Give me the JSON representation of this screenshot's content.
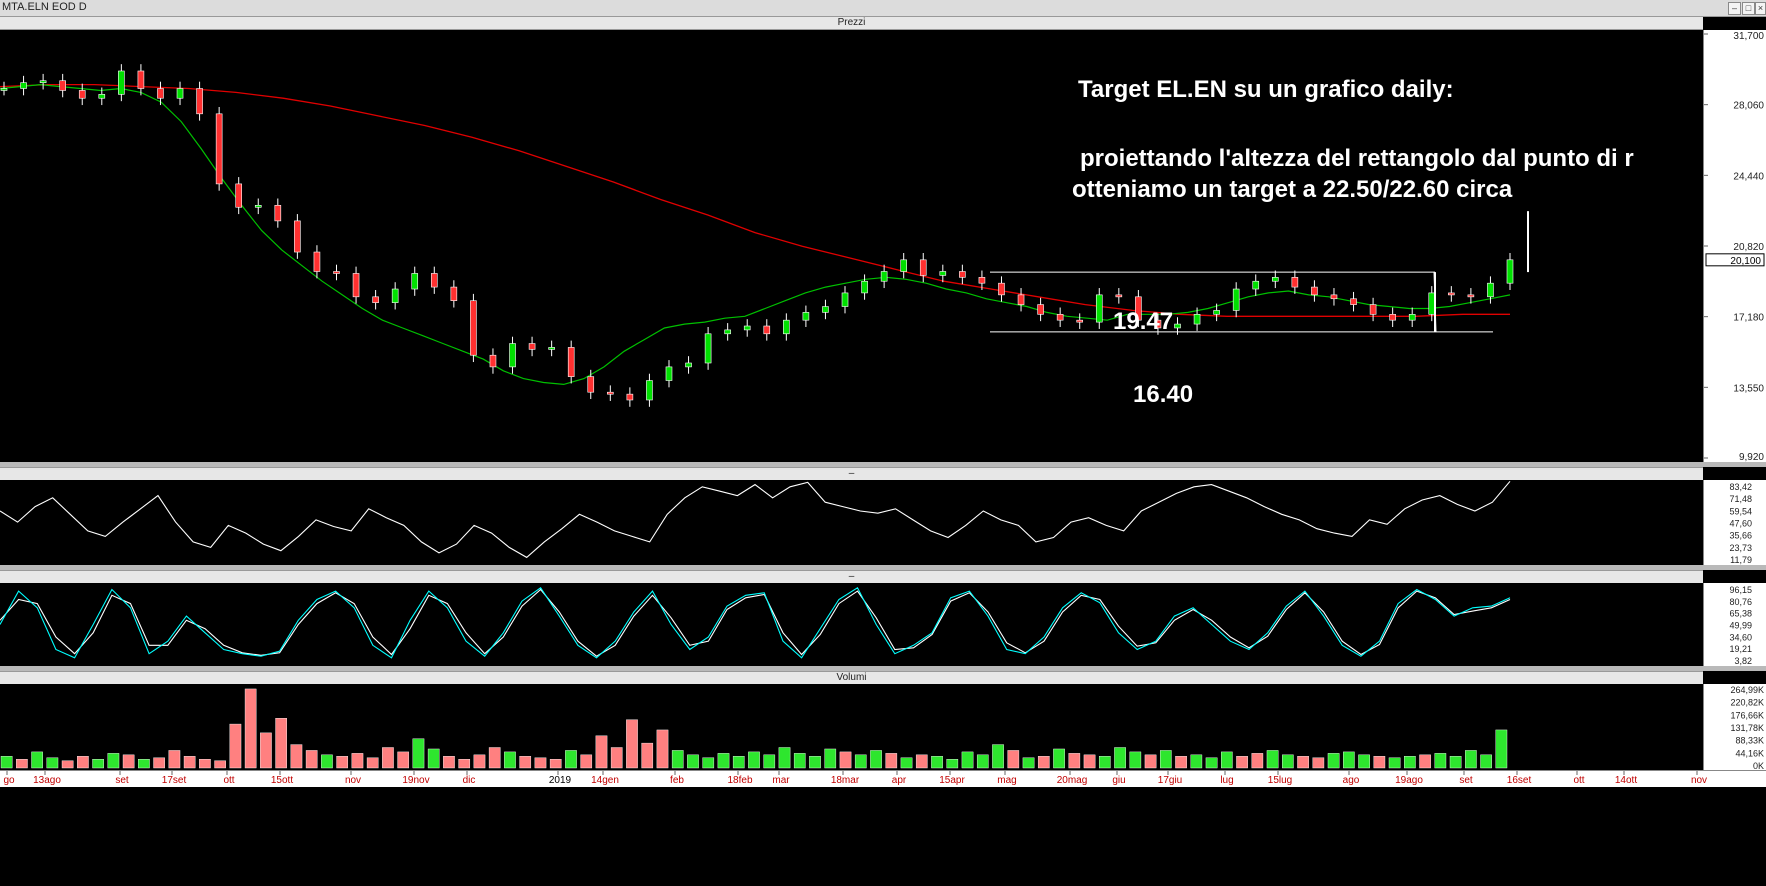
{
  "window": {
    "title": "MTA.ELN EOD D"
  },
  "panels": {
    "price": {
      "title": "Prezzi"
    },
    "rsi": {
      "title": ""
    },
    "stoch": {
      "title": ""
    },
    "volume": {
      "title": "Volumi"
    }
  },
  "annotations": {
    "title": "Target EL.EN su un grafico daily:",
    "line1": "proiettando l'altezza del rettangolo dal punto di r",
    "line2": "otteniamo un target a 22.50/22.60 circa",
    "resistance": "19.47",
    "support": "16.40"
  },
  "colors": {
    "up": "#00e000",
    "down": "#ff3030",
    "ma_short": "#00c000",
    "ma_long": "#e00000",
    "rsi": "#ffffff",
    "stoch_k": "#00ffff",
    "stoch_d": "#ffffff",
    "vol_up": "#2ee62e",
    "vol_down": "#ff8080"
  },
  "chart_data": [
    {
      "type": "candlestick",
      "name": "Prezzi",
      "yticks": [
        "31,700",
        "28,060",
        "24,440",
        "20,820",
        "17,180",
        "13,550",
        "9,920"
      ],
      "ylim": [
        9.92,
        31.7
      ],
      "last_price": "20,100",
      "x_labels": [
        "go",
        "13ago",
        "set",
        "17set",
        "ott",
        "15ott",
        "nov",
        "19nov",
        "dic",
        "2019",
        "14gen",
        "feb",
        "18feb",
        "mar",
        "18mar",
        "apr",
        "15apr",
        "mag",
        "20mag",
        "giu",
        "17giu",
        "lug",
        "15lug",
        "ago",
        "19ago",
        "set",
        "16set",
        "ott",
        "14ott",
        "nov"
      ],
      "close": [
        28.9,
        29.2,
        29.3,
        28.8,
        28.4,
        28.6,
        29.8,
        28.9,
        28.4,
        28.9,
        27.6,
        24.0,
        22.8,
        22.9,
        22.1,
        20.5,
        19.5,
        19.4,
        18.2,
        17.9,
        18.6,
        19.4,
        18.7,
        18.0,
        15.2,
        14.6,
        15.8,
        15.5,
        15.6,
        14.1,
        13.3,
        13.2,
        12.9,
        13.9,
        14.6,
        14.8,
        16.3,
        16.5,
        16.7,
        16.3,
        17.0,
        17.4,
        17.7,
        18.4,
        19.0,
        19.5,
        20.1,
        19.3,
        19.5,
        19.2,
        18.9,
        18.3,
        17.8,
        17.3,
        17.0,
        16.9,
        18.3,
        18.2,
        17.0,
        16.6,
        16.8,
        17.3,
        17.5,
        18.6,
        19.0,
        19.2,
        18.7,
        18.3,
        18.1,
        17.8,
        17.3,
        17.0,
        17.3,
        18.4,
        18.3,
        18.2,
        18.9,
        20.1
      ],
      "sma_short": [
        28.9,
        29.0,
        29.1,
        29.0,
        28.9,
        28.8,
        28.9,
        28.7,
        28.2,
        27.2,
        25.8,
        24.3,
        22.9,
        21.6,
        20.6,
        19.8,
        19.0,
        18.3,
        17.6,
        17.0,
        16.6,
        16.2,
        15.8,
        15.4,
        15.0,
        14.4,
        14.0,
        13.8,
        13.7,
        14.0,
        14.6,
        15.4,
        16.0,
        16.6,
        16.8,
        16.9,
        17.1,
        17.2,
        17.6,
        18.0,
        18.4,
        18.7,
        18.9,
        19.1,
        19.2,
        19.1,
        18.9,
        18.6,
        18.4,
        18.1,
        17.9,
        17.7,
        17.4,
        17.2,
        17.1,
        17.0,
        17.3,
        17.3,
        17.3,
        17.4,
        17.6,
        17.9,
        18.2,
        18.4,
        18.5,
        18.3,
        18.2,
        18.0,
        17.8,
        17.7,
        17.6,
        17.6,
        17.7,
        17.9,
        18.1,
        18.3
      ],
      "sma_long": [
        29.0,
        29.1,
        29.1,
        29.0,
        28.9,
        28.7,
        28.4,
        28.0,
        27.5,
        27.0,
        26.4,
        25.7,
        24.9,
        24.1,
        23.2,
        22.4,
        21.5,
        20.8,
        20.2,
        19.6,
        19.0,
        18.6,
        18.2,
        17.8,
        17.5,
        17.3,
        17.2,
        17.2,
        17.2,
        17.2,
        17.2,
        17.3,
        17.3
      ],
      "rectangle": {
        "top": 19.47,
        "bottom": 16.4
      },
      "target": [
        19.47,
        22.6
      ]
    },
    {
      "type": "line",
      "name": "RSI",
      "yticks": [
        "83,42",
        "71,48",
        "59,54",
        "47,60",
        "35,66",
        "23,73",
        "11,79"
      ],
      "ylim": [
        11.79,
        83.42
      ],
      "values": [
        58,
        48,
        62,
        70,
        55,
        40,
        35,
        48,
        60,
        72,
        48,
        30,
        25,
        45,
        38,
        28,
        22,
        35,
        50,
        44,
        40,
        60,
        52,
        45,
        30,
        20,
        28,
        45,
        38,
        25,
        16,
        30,
        42,
        55,
        48,
        40,
        35,
        30,
        55,
        70,
        80,
        76,
        72,
        82,
        70,
        80,
        84,
        66,
        62,
        58,
        56,
        60,
        50,
        40,
        34,
        45,
        58,
        50,
        45,
        30,
        34,
        48,
        52,
        45,
        40,
        58,
        66,
        74,
        80,
        82,
        76,
        70,
        62,
        55,
        50,
        42,
        38,
        35,
        50,
        46,
        60,
        68,
        72,
        64,
        58,
        66,
        85
      ]
    },
    {
      "type": "line",
      "name": "Stocastico",
      "yticks": [
        "96,15",
        "80,76",
        "65,38",
        "49,99",
        "34,60",
        "19,21",
        "3,82"
      ],
      "ylim": [
        3.82,
        96.15
      ],
      "k": [
        50,
        90,
        70,
        20,
        10,
        50,
        92,
        70,
        15,
        30,
        60,
        40,
        20,
        15,
        12,
        18,
        55,
        80,
        90,
        70,
        25,
        10,
        55,
        90,
        70,
        30,
        12,
        40,
        78,
        94,
        60,
        25,
        10,
        30,
        65,
        90,
        50,
        20,
        35,
        72,
        85,
        88,
        30,
        10,
        45,
        80,
        94,
        50,
        15,
        25,
        40,
        82,
        90,
        60,
        20,
        15,
        35,
        70,
        88,
        76,
        40,
        20,
        30,
        60,
        70,
        50,
        30,
        20,
        40,
        72,
        90,
        60,
        25,
        12,
        30,
        75,
        92,
        80,
        60,
        70,
        72,
        82
      ],
      "d": [
        55,
        80,
        75,
        35,
        15,
        40,
        85,
        75,
        25,
        25,
        55,
        45,
        25,
        16,
        13,
        16,
        50,
        75,
        88,
        75,
        35,
        14,
        45,
        85,
        75,
        40,
        15,
        35,
        72,
        92,
        65,
        30,
        12,
        25,
        60,
        85,
        58,
        25,
        30,
        68,
        82,
        86,
        40,
        14,
        38,
        75,
        90,
        58,
        20,
        22,
        38,
        78,
        88,
        65,
        28,
        16,
        30,
        65,
        85,
        80,
        48,
        24,
        28,
        55,
        68,
        55,
        35,
        22,
        36,
        68,
        88,
        65,
        30,
        14,
        26,
        70,
        90,
        82,
        62,
        66,
        70,
        80
      ]
    },
    {
      "type": "bar",
      "name": "Volumi",
      "yticks": [
        "264,99K",
        "220,82K",
        "176,66K",
        "131,78K",
        "88,33K",
        "44,16K",
        "0K"
      ],
      "ylim": [
        0,
        280
      ],
      "values": [
        40,
        30,
        55,
        35,
        25,
        40,
        30,
        50,
        45,
        30,
        35,
        60,
        40,
        30,
        25,
        150,
        270,
        120,
        170,
        80,
        60,
        45,
        40,
        50,
        35,
        70,
        55,
        100,
        65,
        40,
        30,
        45,
        70,
        55,
        40,
        35,
        30,
        60,
        45,
        110,
        70,
        165,
        85,
        130,
        60,
        45,
        35,
        50,
        40,
        55,
        45,
        70,
        50,
        40,
        65,
        55,
        45,
        60,
        50,
        35,
        45,
        40,
        30,
        55,
        45,
        80,
        60,
        35,
        40,
        65,
        50,
        45,
        40,
        70,
        55,
        45,
        60,
        40,
        45,
        35,
        55,
        40,
        50,
        60,
        45,
        40,
        35,
        50,
        55,
        45,
        40,
        35,
        40,
        45,
        50,
        40,
        60,
        45,
        130
      ],
      "colors_up": [
        1,
        0,
        1,
        1,
        0,
        0,
        1,
        1,
        0,
        1,
        0,
        0,
        0,
        0,
        0,
        0,
        0,
        0,
        0,
        0,
        0,
        1,
        0,
        0,
        0,
        0,
        0,
        1,
        1,
        0,
        0,
        0,
        0,
        1,
        0,
        0,
        0,
        1,
        0,
        0,
        0,
        0,
        0,
        0,
        1,
        1,
        1,
        1,
        1,
        1,
        1,
        1,
        1,
        1,
        1,
        0,
        1,
        1,
        0,
        1,
        0,
        1,
        1,
        1,
        1,
        1,
        0,
        1,
        0,
        1,
        0,
        0,
        1,
        1,
        1,
        0,
        1,
        0,
        1,
        1,
        1,
        0,
        0,
        1,
        1,
        0,
        0,
        1,
        1,
        1,
        0,
        1,
        1,
        0,
        1,
        1,
        1,
        1,
        1
      ]
    }
  ]
}
